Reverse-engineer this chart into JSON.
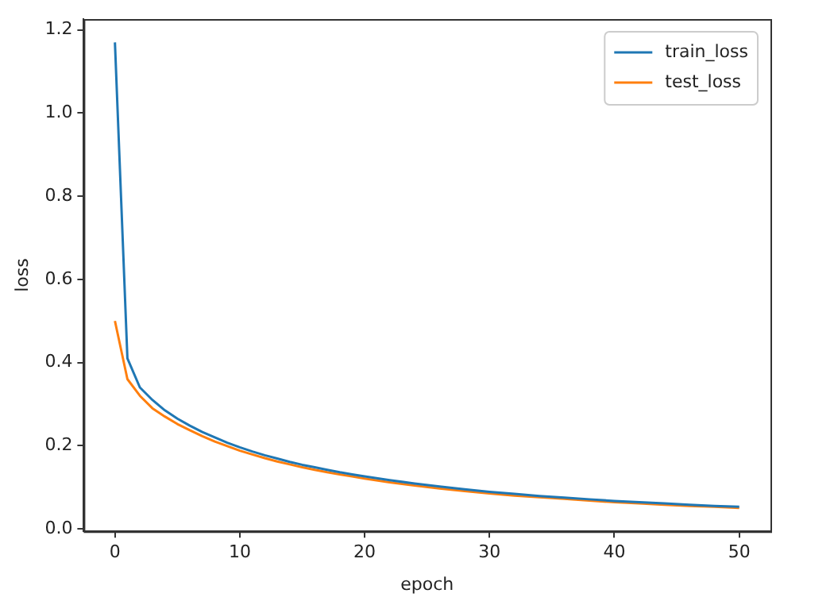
{
  "chart_data": {
    "type": "line",
    "xlabel": "epoch",
    "ylabel": "loss",
    "x": [
      0,
      1,
      2,
      3,
      4,
      5,
      6,
      7,
      8,
      9,
      10,
      11,
      12,
      13,
      14,
      15,
      16,
      17,
      18,
      19,
      20,
      22,
      24,
      26,
      28,
      30,
      32,
      34,
      36,
      38,
      40,
      42,
      44,
      46,
      48,
      50
    ],
    "series": [
      {
        "name": "train_loss",
        "color": "#1f77b4",
        "values": [
          1.17,
          0.41,
          0.34,
          0.31,
          0.285,
          0.265,
          0.248,
          0.233,
          0.22,
          0.207,
          0.196,
          0.186,
          0.177,
          0.169,
          0.161,
          0.154,
          0.148,
          0.142,
          0.136,
          0.131,
          0.126,
          0.117,
          0.109,
          0.102,
          0.095,
          0.089,
          0.084,
          0.079,
          0.075,
          0.071,
          0.067,
          0.064,
          0.061,
          0.058,
          0.055,
          0.053
        ]
      },
      {
        "name": "test_loss",
        "color": "#ff7f0e",
        "values": [
          0.5,
          0.36,
          0.32,
          0.29,
          0.27,
          0.252,
          0.237,
          0.223,
          0.21,
          0.199,
          0.188,
          0.179,
          0.17,
          0.162,
          0.155,
          0.148,
          0.142,
          0.136,
          0.131,
          0.126,
          0.121,
          0.112,
          0.104,
          0.097,
          0.091,
          0.085,
          0.08,
          0.076,
          0.072,
          0.068,
          0.064,
          0.061,
          0.058,
          0.055,
          0.053,
          0.05
        ]
      }
    ],
    "xlim": [
      -2.5,
      52.5
    ],
    "xticks": [
      0,
      10,
      20,
      30,
      40,
      50
    ],
    "ylim": [
      -0.006,
      1.226
    ],
    "yticks": [
      {
        "value": 0,
        "label": "0.0"
      },
      {
        "value": 0.2,
        "label": "0.2"
      },
      {
        "value": 0.4,
        "label": "0.4"
      },
      {
        "value": 0.6,
        "label": "0.6"
      },
      {
        "value": 0.8,
        "label": "0.8"
      },
      {
        "value": 1.0,
        "label": "1.0"
      },
      {
        "value": 1.2,
        "label": "1.2"
      }
    ],
    "legend": "top right",
    "grid": false,
    "marker": "none",
    "line_style": "solid"
  }
}
